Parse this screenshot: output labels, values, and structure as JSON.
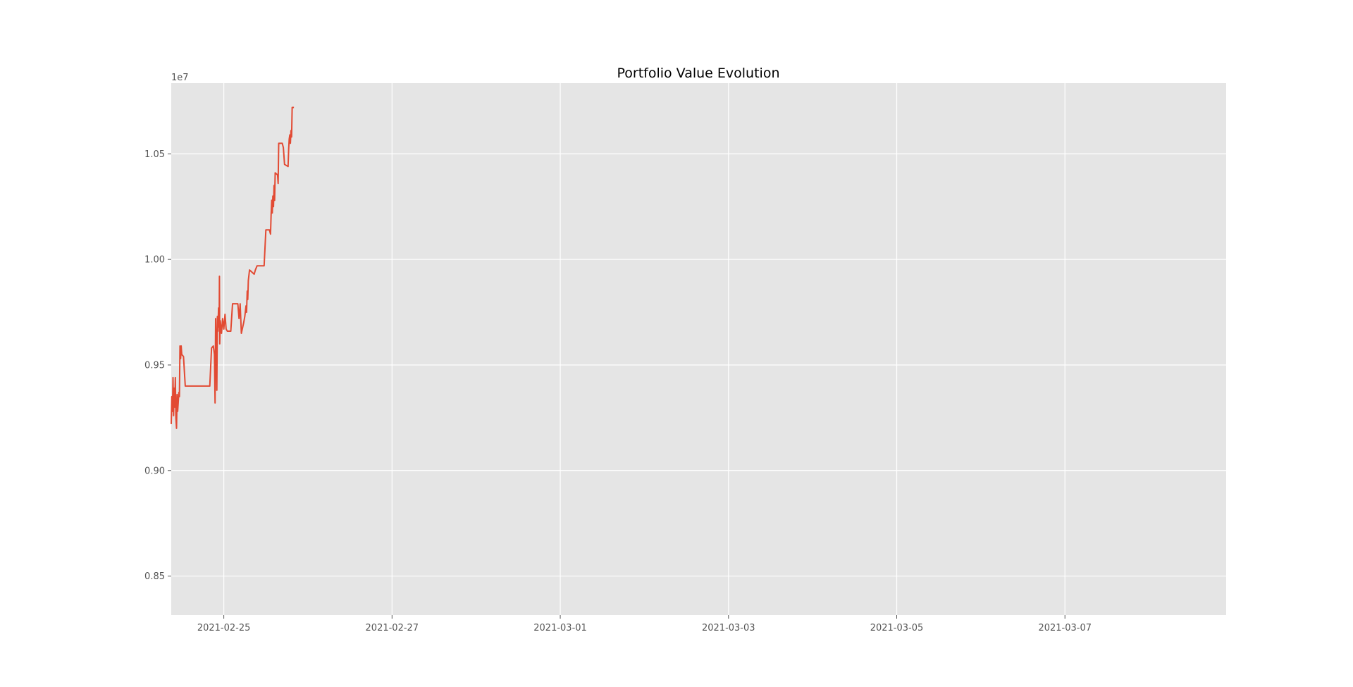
{
  "chart_data": {
    "type": "line",
    "title": "Portfolio Value Evolution",
    "xlabel": "",
    "ylabel": "",
    "y_offset_label": "1e7",
    "style": "ggplot",
    "grid": true,
    "legend": "none",
    "colors": {
      "figure_bg": "#ffffff",
      "axes_bg": "#e5e5e5",
      "grid": "#ffffff",
      "line": "#e24a33",
      "tick_label": "#555555",
      "title": "#000000"
    },
    "xlim": [
      "2021-02-24 09:00",
      "2021-03-08 22:00"
    ],
    "ylim": [
      0.8315,
      1.0835
    ],
    "x_ticks": [
      "2021-02-25",
      "2021-02-27",
      "2021-03-01",
      "2021-03-03",
      "2021-03-05",
      "2021-03-07"
    ],
    "y_ticks": [
      "0.85",
      "0.90",
      "0.95",
      "1.00",
      "1.05"
    ],
    "series": [
      {
        "points": [
          [
            "2021-02-24 09:00",
            0.922
          ],
          [
            "2021-02-24 09:10",
            0.935
          ],
          [
            "2021-02-24 09:20",
            0.928
          ],
          [
            "2021-02-24 09:30",
            0.944
          ],
          [
            "2021-02-24 09:40",
            0.926
          ],
          [
            "2021-02-24 09:50",
            0.939
          ],
          [
            "2021-02-24 10:00",
            0.93
          ],
          [
            "2021-02-24 10:10",
            0.944
          ],
          [
            "2021-02-24 10:20",
            0.925
          ],
          [
            "2021-02-24 10:30",
            0.92
          ],
          [
            "2021-02-24 10:40",
            0.936
          ],
          [
            "2021-02-24 10:50",
            0.928
          ],
          [
            "2021-02-24 11:00",
            0.932
          ],
          [
            "2021-02-24 11:10",
            0.937
          ],
          [
            "2021-02-24 11:20",
            0.935
          ],
          [
            "2021-02-24 11:30",
            0.959
          ],
          [
            "2021-02-24 11:40",
            0.953
          ],
          [
            "2021-02-24 11:50",
            0.959
          ],
          [
            "2021-02-24 12:00",
            0.955
          ],
          [
            "2021-02-24 12:30",
            0.954
          ],
          [
            "2021-02-24 13:00",
            0.94
          ],
          [
            "2021-02-24 16:00",
            0.94
          ],
          [
            "2021-02-24 20:00",
            0.94
          ],
          [
            "2021-02-24 20:30",
            0.958
          ],
          [
            "2021-02-24 21:00",
            0.959
          ],
          [
            "2021-02-24 21:20",
            0.955
          ],
          [
            "2021-02-24 21:30",
            0.932
          ],
          [
            "2021-02-24 21:40",
            0.972
          ],
          [
            "2021-02-24 21:50",
            0.96
          ],
          [
            "2021-02-24 22:00",
            0.938
          ],
          [
            "2021-02-24 22:10",
            0.973
          ],
          [
            "2021-02-24 22:20",
            0.966
          ],
          [
            "2021-02-24 22:30",
            0.977
          ],
          [
            "2021-02-24 22:40",
            0.968
          ],
          [
            "2021-02-24 22:45",
            0.992
          ],
          [
            "2021-02-24 22:50",
            0.96
          ],
          [
            "2021-02-24 23:00",
            0.971
          ],
          [
            "2021-02-24 23:20",
            0.965
          ],
          [
            "2021-02-24 23:40",
            0.972
          ],
          [
            "2021-02-25 00:00",
            0.967
          ],
          [
            "2021-02-25 00:20",
            0.974
          ],
          [
            "2021-02-25 00:40",
            0.967
          ],
          [
            "2021-02-25 01:00",
            0.966
          ],
          [
            "2021-02-25 02:00",
            0.966
          ],
          [
            "2021-02-25 02:30",
            0.979
          ],
          [
            "2021-02-25 04:00",
            0.979
          ],
          [
            "2021-02-25 04:20",
            0.972
          ],
          [
            "2021-02-25 04:40",
            0.979
          ],
          [
            "2021-02-25 05:00",
            0.965
          ],
          [
            "2021-02-25 05:40",
            0.97
          ],
          [
            "2021-02-25 06:00",
            0.973
          ],
          [
            "2021-02-25 06:20",
            0.978
          ],
          [
            "2021-02-25 06:30",
            0.975
          ],
          [
            "2021-02-25 06:40",
            0.985
          ],
          [
            "2021-02-25 06:50",
            0.981
          ],
          [
            "2021-02-25 07:00",
            0.99
          ],
          [
            "2021-02-25 07:20",
            0.995
          ],
          [
            "2021-02-25 08:00",
            0.994
          ],
          [
            "2021-02-25 08:40",
            0.993
          ],
          [
            "2021-02-25 09:00",
            0.995
          ],
          [
            "2021-02-25 09:30",
            0.997
          ],
          [
            "2021-02-25 11:30",
            0.997
          ],
          [
            "2021-02-25 12:00",
            1.014
          ],
          [
            "2021-02-25 13:00",
            1.014
          ],
          [
            "2021-02-25 13:20",
            1.012
          ],
          [
            "2021-02-25 13:30",
            1.021
          ],
          [
            "2021-02-25 13:40",
            1.028
          ],
          [
            "2021-02-25 13:50",
            1.022
          ],
          [
            "2021-02-25 14:00",
            1.03
          ],
          [
            "2021-02-25 14:10",
            1.025
          ],
          [
            "2021-02-25 14:20",
            1.035
          ],
          [
            "2021-02-25 14:30",
            1.028
          ],
          [
            "2021-02-25 14:40",
            1.041
          ],
          [
            "2021-02-25 15:20",
            1.04
          ],
          [
            "2021-02-25 15:30",
            1.036
          ],
          [
            "2021-02-25 15:40",
            1.055
          ],
          [
            "2021-02-25 16:40",
            1.055
          ],
          [
            "2021-02-25 17:00",
            1.053
          ],
          [
            "2021-02-25 17:20",
            1.045
          ],
          [
            "2021-02-25 18:20",
            1.044
          ],
          [
            "2021-02-25 18:30",
            1.052
          ],
          [
            "2021-02-25 18:40",
            1.057
          ],
          [
            "2021-02-25 18:50",
            1.059
          ],
          [
            "2021-02-25 19:00",
            1.055
          ],
          [
            "2021-02-25 19:10",
            1.061
          ],
          [
            "2021-02-25 19:20",
            1.058
          ],
          [
            "2021-02-25 19:30",
            1.072
          ],
          [
            "2021-02-25 20:00",
            1.072
          ]
        ]
      }
    ]
  }
}
